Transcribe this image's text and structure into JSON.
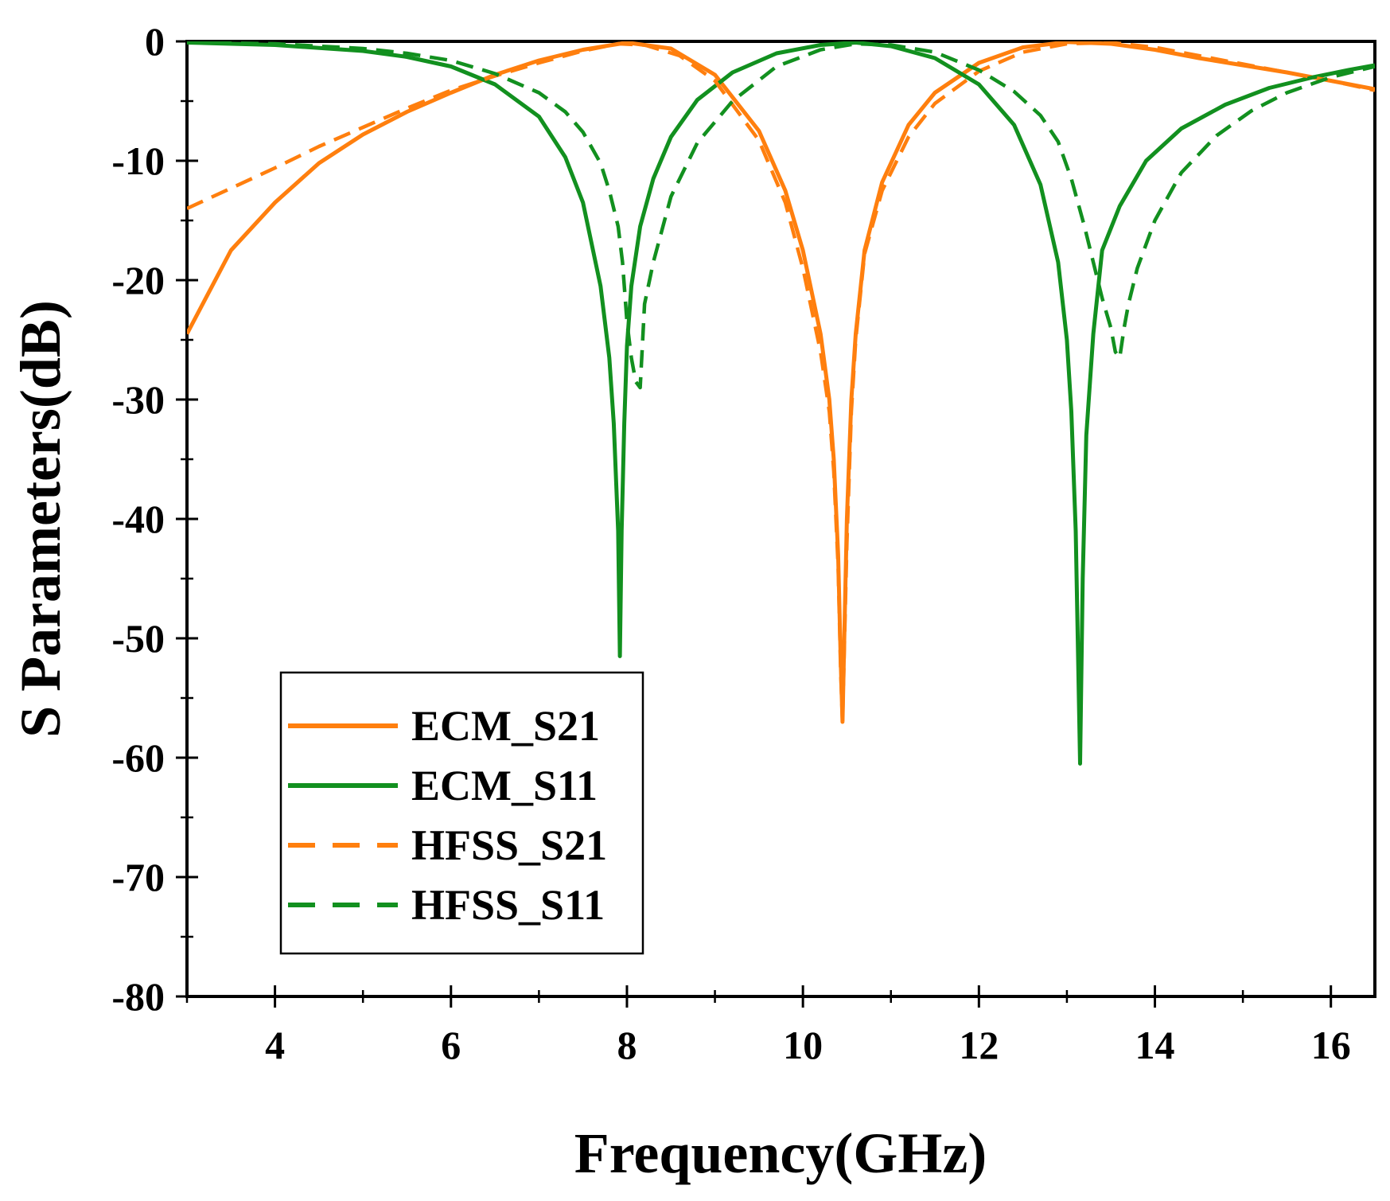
{
  "chart_data": {
    "type": "line",
    "title": "",
    "xlabel": "Frequency(GHz)",
    "ylabel": "S Parameters(dB)",
    "xlim": [
      3,
      16.5
    ],
    "ylim": [
      -80,
      0
    ],
    "xticks": [
      4,
      6,
      8,
      10,
      12,
      14,
      16
    ],
    "yticks": [
      0,
      -10,
      -20,
      -30,
      -40,
      -50,
      -60,
      -70,
      -80
    ],
    "xtick_labels": [
      "4",
      "6",
      "8",
      "10",
      "12",
      "14",
      "16"
    ],
    "ytick_labels": [
      "0",
      "-10",
      "-20",
      "-30",
      "-40",
      "-50",
      "-60",
      "-70",
      "-80"
    ],
    "grid": false,
    "legend_position": "bottom-left",
    "series": [
      {
        "name": "ECM_S21",
        "color": "#ff7f0e",
        "dash": "solid",
        "x": [
          3.0,
          3.5,
          4.0,
          4.5,
          5.0,
          5.5,
          6.0,
          6.5,
          7.0,
          7.5,
          8.0,
          8.5,
          9.0,
          9.5,
          9.8,
          10.0,
          10.2,
          10.3,
          10.35,
          10.4,
          10.43,
          10.45,
          10.47,
          10.5,
          10.55,
          10.6,
          10.7,
          10.9,
          11.2,
          11.5,
          12.0,
          12.5,
          13.0,
          13.5,
          14.0,
          14.5,
          15.0,
          15.5,
          16.0,
          16.5
        ],
        "y": [
          -24.5,
          -17.5,
          -13.5,
          -10.2,
          -7.8,
          -5.9,
          -4.3,
          -2.8,
          -1.6,
          -0.7,
          -0.1,
          -0.6,
          -2.8,
          -7.5,
          -12.5,
          -17.5,
          -24.5,
          -30,
          -35,
          -43,
          -52,
          -57,
          -50,
          -40,
          -30,
          -24.5,
          -17.5,
          -11.8,
          -7.0,
          -4.3,
          -1.8,
          -0.5,
          -0.05,
          -0.2,
          -0.7,
          -1.4,
          -2.0,
          -2.6,
          -3.3,
          -4.0
        ]
      },
      {
        "name": "ECM_S11",
        "color": "#12901f",
        "dash": "solid",
        "x": [
          3.0,
          4.0,
          5.0,
          5.5,
          6.0,
          6.5,
          7.0,
          7.3,
          7.5,
          7.7,
          7.8,
          7.85,
          7.9,
          7.92,
          7.94,
          7.97,
          8.0,
          8.05,
          8.15,
          8.3,
          8.5,
          8.8,
          9.2,
          9.7,
          10.2,
          10.6,
          11.0,
          11.5,
          12.0,
          12.4,
          12.7,
          12.9,
          13.0,
          13.05,
          13.1,
          13.15,
          13.18,
          13.22,
          13.3,
          13.4,
          13.6,
          13.9,
          14.3,
          14.8,
          15.3,
          15.8,
          16.2,
          16.5
        ],
        "y": [
          -0.1,
          -0.3,
          -0.8,
          -1.3,
          -2.1,
          -3.6,
          -6.3,
          -9.7,
          -13.5,
          -20.5,
          -26.5,
          -32,
          -41,
          -51.5,
          -41,
          -32,
          -25.5,
          -20.5,
          -15.5,
          -11.5,
          -8.0,
          -4.9,
          -2.6,
          -1.0,
          -0.3,
          -0.1,
          -0.4,
          -1.4,
          -3.6,
          -7.0,
          -12.0,
          -18.5,
          -25,
          -31,
          -41,
          -60.5,
          -45,
          -33,
          -24.5,
          -17.5,
          -13.8,
          -10.0,
          -7.3,
          -5.3,
          -3.9,
          -3.0,
          -2.4,
          -2.0
        ]
      },
      {
        "name": "HFSS_S21",
        "color": "#ff7f0e",
        "dash": "dashed",
        "x": [
          3.0,
          3.5,
          4.0,
          4.5,
          5.0,
          5.5,
          6.0,
          6.5,
          7.0,
          7.5,
          7.9,
          8.2,
          8.6,
          9.0,
          9.5,
          9.8,
          10.0,
          10.2,
          10.3,
          10.35,
          10.4,
          10.43,
          10.45,
          10.47,
          10.5,
          10.55,
          10.6,
          10.7,
          10.9,
          11.2,
          11.5,
          12.0,
          12.5,
          13.0,
          13.5,
          14.0,
          14.5,
          15.0,
          15.5,
          16.0,
          16.5
        ],
        "y": [
          -14,
          -12.3,
          -10.6,
          -8.8,
          -7.2,
          -5.6,
          -4.1,
          -2.9,
          -1.8,
          -0.8,
          -0.2,
          -0.3,
          -1.2,
          -3.3,
          -8.3,
          -13.5,
          -19.0,
          -26.0,
          -31,
          -36,
          -44,
          -53,
          -57,
          -51,
          -42,
          -31,
          -25.0,
          -17.8,
          -12.5,
          -8.0,
          -5.2,
          -2.5,
          -0.9,
          -0.2,
          -0.1,
          -0.5,
          -1.2,
          -1.9,
          -2.6,
          -3.3,
          -4.1
        ]
      },
      {
        "name": "HFSS_S11",
        "color": "#12901f",
        "dash": "dashed",
        "x": [
          3.0,
          4.0,
          5.0,
          5.5,
          6.0,
          6.5,
          7.0,
          7.3,
          7.5,
          7.7,
          7.8,
          7.9,
          7.95,
          8.0,
          8.05,
          8.1,
          8.15,
          8.2,
          8.3,
          8.5,
          8.8,
          9.2,
          9.7,
          10.2,
          10.6,
          11.0,
          11.5,
          12.0,
          12.4,
          12.7,
          12.9,
          13.05,
          13.2,
          13.3,
          13.4,
          13.5,
          13.55,
          13.6,
          13.65,
          13.7,
          13.8,
          14.0,
          14.3,
          14.7,
          15.1,
          15.5,
          16.0,
          16.5
        ],
        "y": [
          -0.1,
          -0.2,
          -0.6,
          -1.0,
          -1.6,
          -2.7,
          -4.3,
          -5.9,
          -7.6,
          -10.2,
          -12.5,
          -15.5,
          -18.5,
          -23.5,
          -26.5,
          -28.5,
          -29,
          -22,
          -18.5,
          -13.0,
          -8.5,
          -5.0,
          -2.1,
          -0.7,
          -0.2,
          -0.3,
          -0.9,
          -2.4,
          -4.2,
          -6.2,
          -8.4,
          -11.5,
          -15.5,
          -18.5,
          -21.5,
          -24,
          -26,
          -26.5,
          -24,
          -22,
          -19,
          -15.0,
          -11.0,
          -7.9,
          -5.8,
          -4.3,
          -3.0,
          -2.1
        ]
      }
    ]
  }
}
